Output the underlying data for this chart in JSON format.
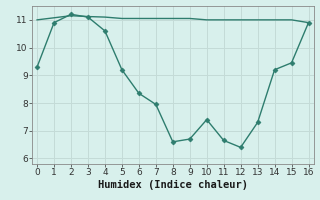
{
  "xlabel": "Humidex (Indice chaleur)",
  "line1_x": [
    0,
    1,
    2,
    3,
    4,
    5,
    6,
    7,
    8,
    9,
    10,
    11,
    12,
    13,
    14,
    15,
    16
  ],
  "line1_y": [
    9.3,
    10.9,
    11.2,
    11.1,
    10.6,
    9.2,
    8.35,
    7.95,
    6.6,
    6.7,
    7.4,
    6.65,
    6.4,
    7.3,
    9.2,
    9.45,
    10.9
  ],
  "line2_x": [
    0,
    2,
    3,
    4,
    5,
    6,
    7,
    8,
    9,
    10,
    11,
    12,
    13,
    14,
    15,
    16
  ],
  "line2_y": [
    11.0,
    11.15,
    11.12,
    11.1,
    11.05,
    11.05,
    11.05,
    11.05,
    11.05,
    11.0,
    11.0,
    11.0,
    11.0,
    11.0,
    11.0,
    10.9
  ],
  "line_color": "#2e7d6e",
  "bg_color": "#d8f0ec",
  "grid_color": "#c4dbd7",
  "ylim": [
    5.8,
    11.5
  ],
  "xlim": [
    -0.3,
    16.3
  ],
  "yticks": [
    6,
    7,
    8,
    9,
    10,
    11
  ],
  "xticks": [
    0,
    1,
    2,
    3,
    4,
    5,
    6,
    7,
    8,
    9,
    10,
    11,
    12,
    13,
    14,
    15,
    16
  ],
  "marker": "D",
  "markersize": 2.5,
  "linewidth": 1.0,
  "xlabel_fontsize": 7.5,
  "tick_fontsize": 6.5
}
